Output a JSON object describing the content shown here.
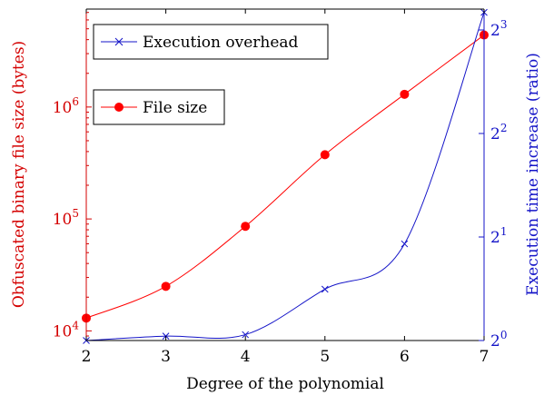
{
  "chart_data": {
    "type": "line",
    "xlabel": "Degree of the polynomial",
    "x": [
      2,
      3,
      4,
      5,
      6,
      7
    ],
    "x_ticks": [
      "2",
      "3",
      "4",
      "5",
      "6",
      "7"
    ],
    "xlim": [
      2,
      7
    ],
    "y_left": {
      "label": "Obfuscated binary file size (bytes)",
      "scale": "log10",
      "range": [
        8200,
        7500000
      ],
      "ticks": [
        {
          "base": "10",
          "exp": "4",
          "value": 10000
        },
        {
          "base": "10",
          "exp": "5",
          "value": 100000
        },
        {
          "base": "10",
          "exp": "6",
          "value": 1000000
        }
      ],
      "color": "#d40000"
    },
    "y_right": {
      "label": "Execution time increase (ratio)",
      "scale": "log2",
      "range": [
        1,
        9.2
      ],
      "ticks": [
        {
          "base": "2",
          "exp": "0",
          "value": 1
        },
        {
          "base": "2",
          "exp": "1",
          "value": 2
        },
        {
          "base": "2",
          "exp": "2",
          "value": 4
        },
        {
          "base": "2",
          "exp": "3",
          "value": 8
        }
      ],
      "color": "#1414c8"
    },
    "series": [
      {
        "name": "File size",
        "axis": "left",
        "marker": "circle",
        "color": "#ff0000",
        "values": [
          13000,
          25000,
          86000,
          375000,
          1300000,
          4400000
        ]
      },
      {
        "name": "Execution overhead",
        "axis": "right",
        "marker": "x",
        "color": "#1414c8",
        "values": [
          1.0,
          1.03,
          1.04,
          1.41,
          1.91,
          9.0
        ]
      }
    ],
    "grid": false,
    "legend": [
      {
        "series": "Execution overhead",
        "placement": "top-left"
      },
      {
        "series": "File size",
        "placement": "upper-left"
      }
    ]
  }
}
